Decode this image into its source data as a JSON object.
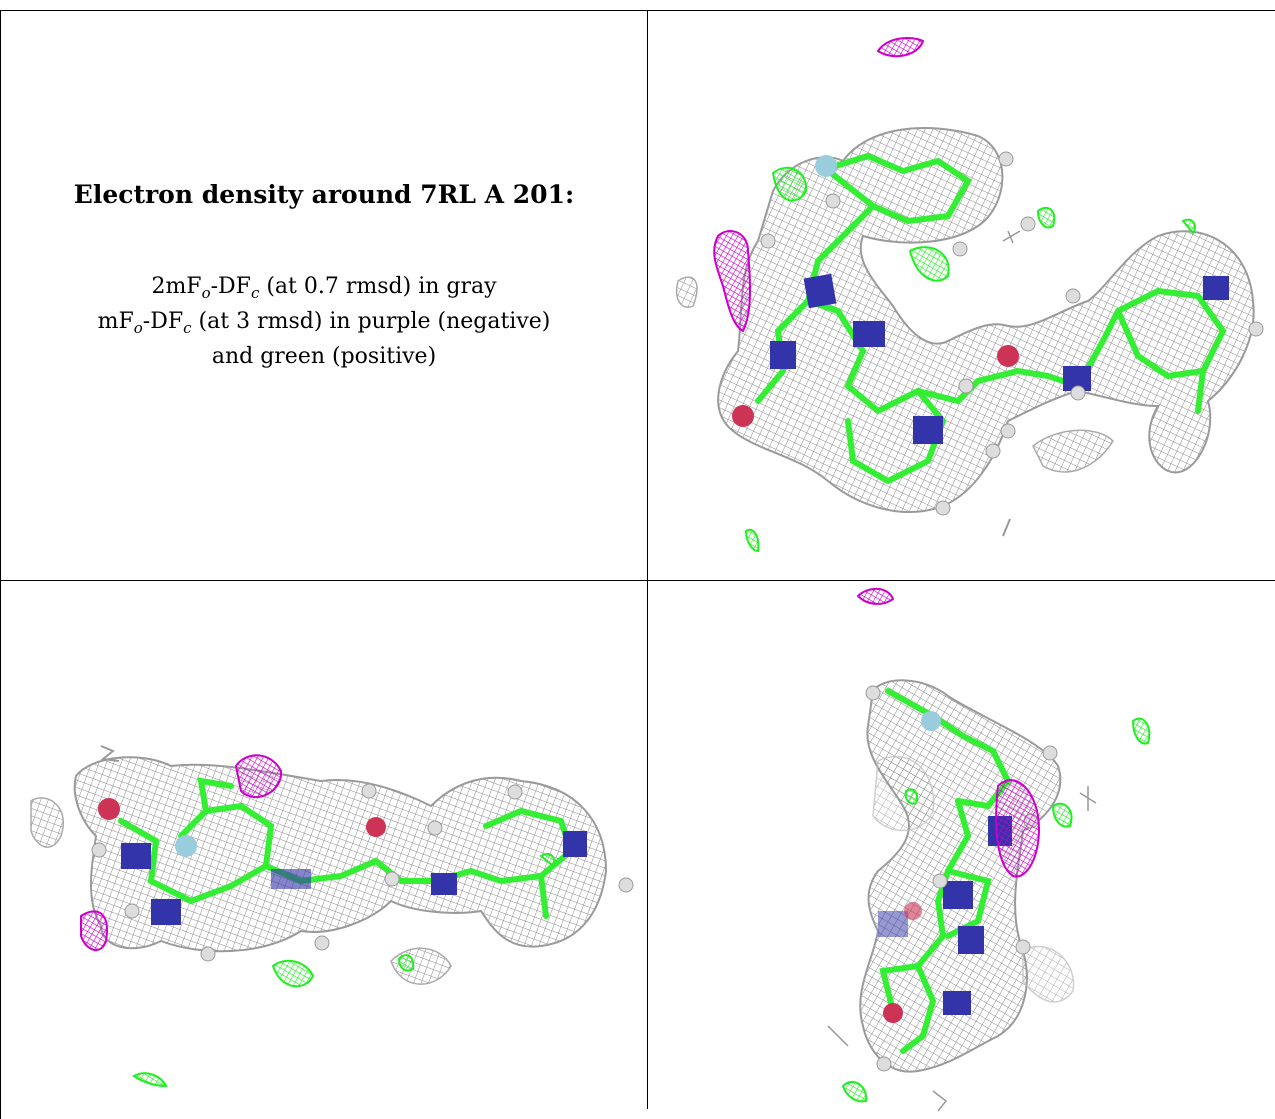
{
  "caption": {
    "title": "Electron density around 7RL A 201:",
    "line1": {
      "pre": "2mF",
      "sub1": "o",
      "mid": "-DF",
      "sub2": "c",
      "post": " (at 0.7 rmsd) in gray"
    },
    "line2": {
      "pre": "mF",
      "sub1": "o",
      "mid": "-DF",
      "sub2": "c",
      "post": " (at 3 rmsd) in purple (negative)"
    },
    "line3": "and green (positive)"
  },
  "colors": {
    "density_2fofc": "#8c8c8c",
    "diff_negative": "#cc00cc",
    "diff_positive": "#22ee22",
    "carbon": "#33ee33",
    "nitrogen": "#3333aa",
    "oxygen": "#cc3355",
    "fluorine": "#99ccdd",
    "hydrogen": "#dddddd"
  },
  "panels": [
    {
      "name": "view-1"
    },
    {
      "name": "view-2"
    },
    {
      "name": "view-3"
    }
  ]
}
